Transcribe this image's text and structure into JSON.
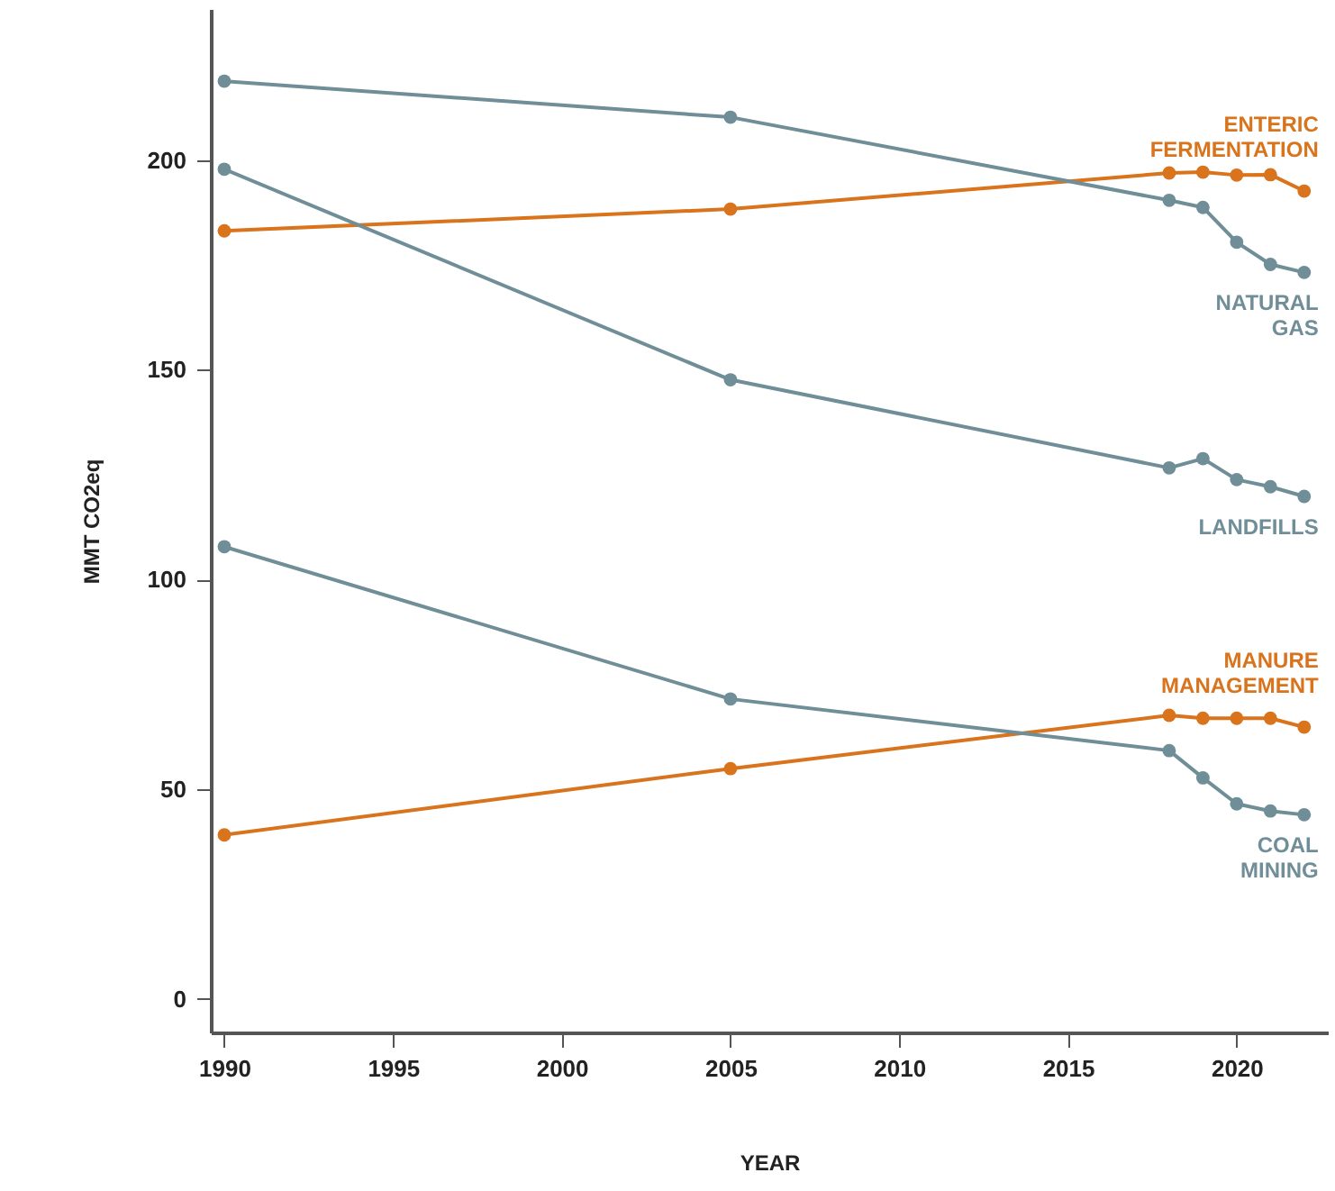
{
  "chart_data": {
    "type": "line",
    "xlabel": "YEAR",
    "ylabel": "MMT CO2eq",
    "x": [
      1990,
      2005,
      2018,
      2019,
      2020,
      2021,
      2022
    ],
    "series": [
      {
        "name": "ENTERIC FERMENTATION",
        "color": "#d9731c",
        "values": [
          183.1,
          188.3,
          196.9,
          197.1,
          196.4,
          196.5,
          192.6
        ]
      },
      {
        "name": "NATURAL GAS",
        "color": "#6f8e97",
        "values": [
          218.8,
          210.2,
          190.4,
          188.7,
          180.4,
          175.1,
          173.2
        ]
      },
      {
        "name": "LANDFILLS",
        "color": "#6f8e97",
        "values": [
          197.8,
          147.6,
          126.6,
          128.8,
          123.8,
          122.1,
          119.8
        ]
      },
      {
        "name": "MANURE MANAGEMENT",
        "color": "#d9731c",
        "values": [
          39.1,
          54.9,
          67.6,
          66.9,
          66.9,
          66.9,
          64.8
        ]
      },
      {
        "name": "COAL MINING",
        "color": "#6f8e97",
        "values": [
          107.8,
          71.5,
          59.2,
          52.7,
          46.5,
          44.8,
          43.9
        ]
      }
    ],
    "xlim": [
      1989.6,
      2022.7
    ],
    "xticks": [
      1990,
      1995,
      2000,
      2005,
      2010,
      2015,
      2020
    ],
    "ylim": [
      -8,
      236
    ],
    "yticks": [
      0,
      50,
      100,
      150,
      200
    ],
    "grid": false,
    "marker": "circle",
    "line_style": "solid"
  }
}
